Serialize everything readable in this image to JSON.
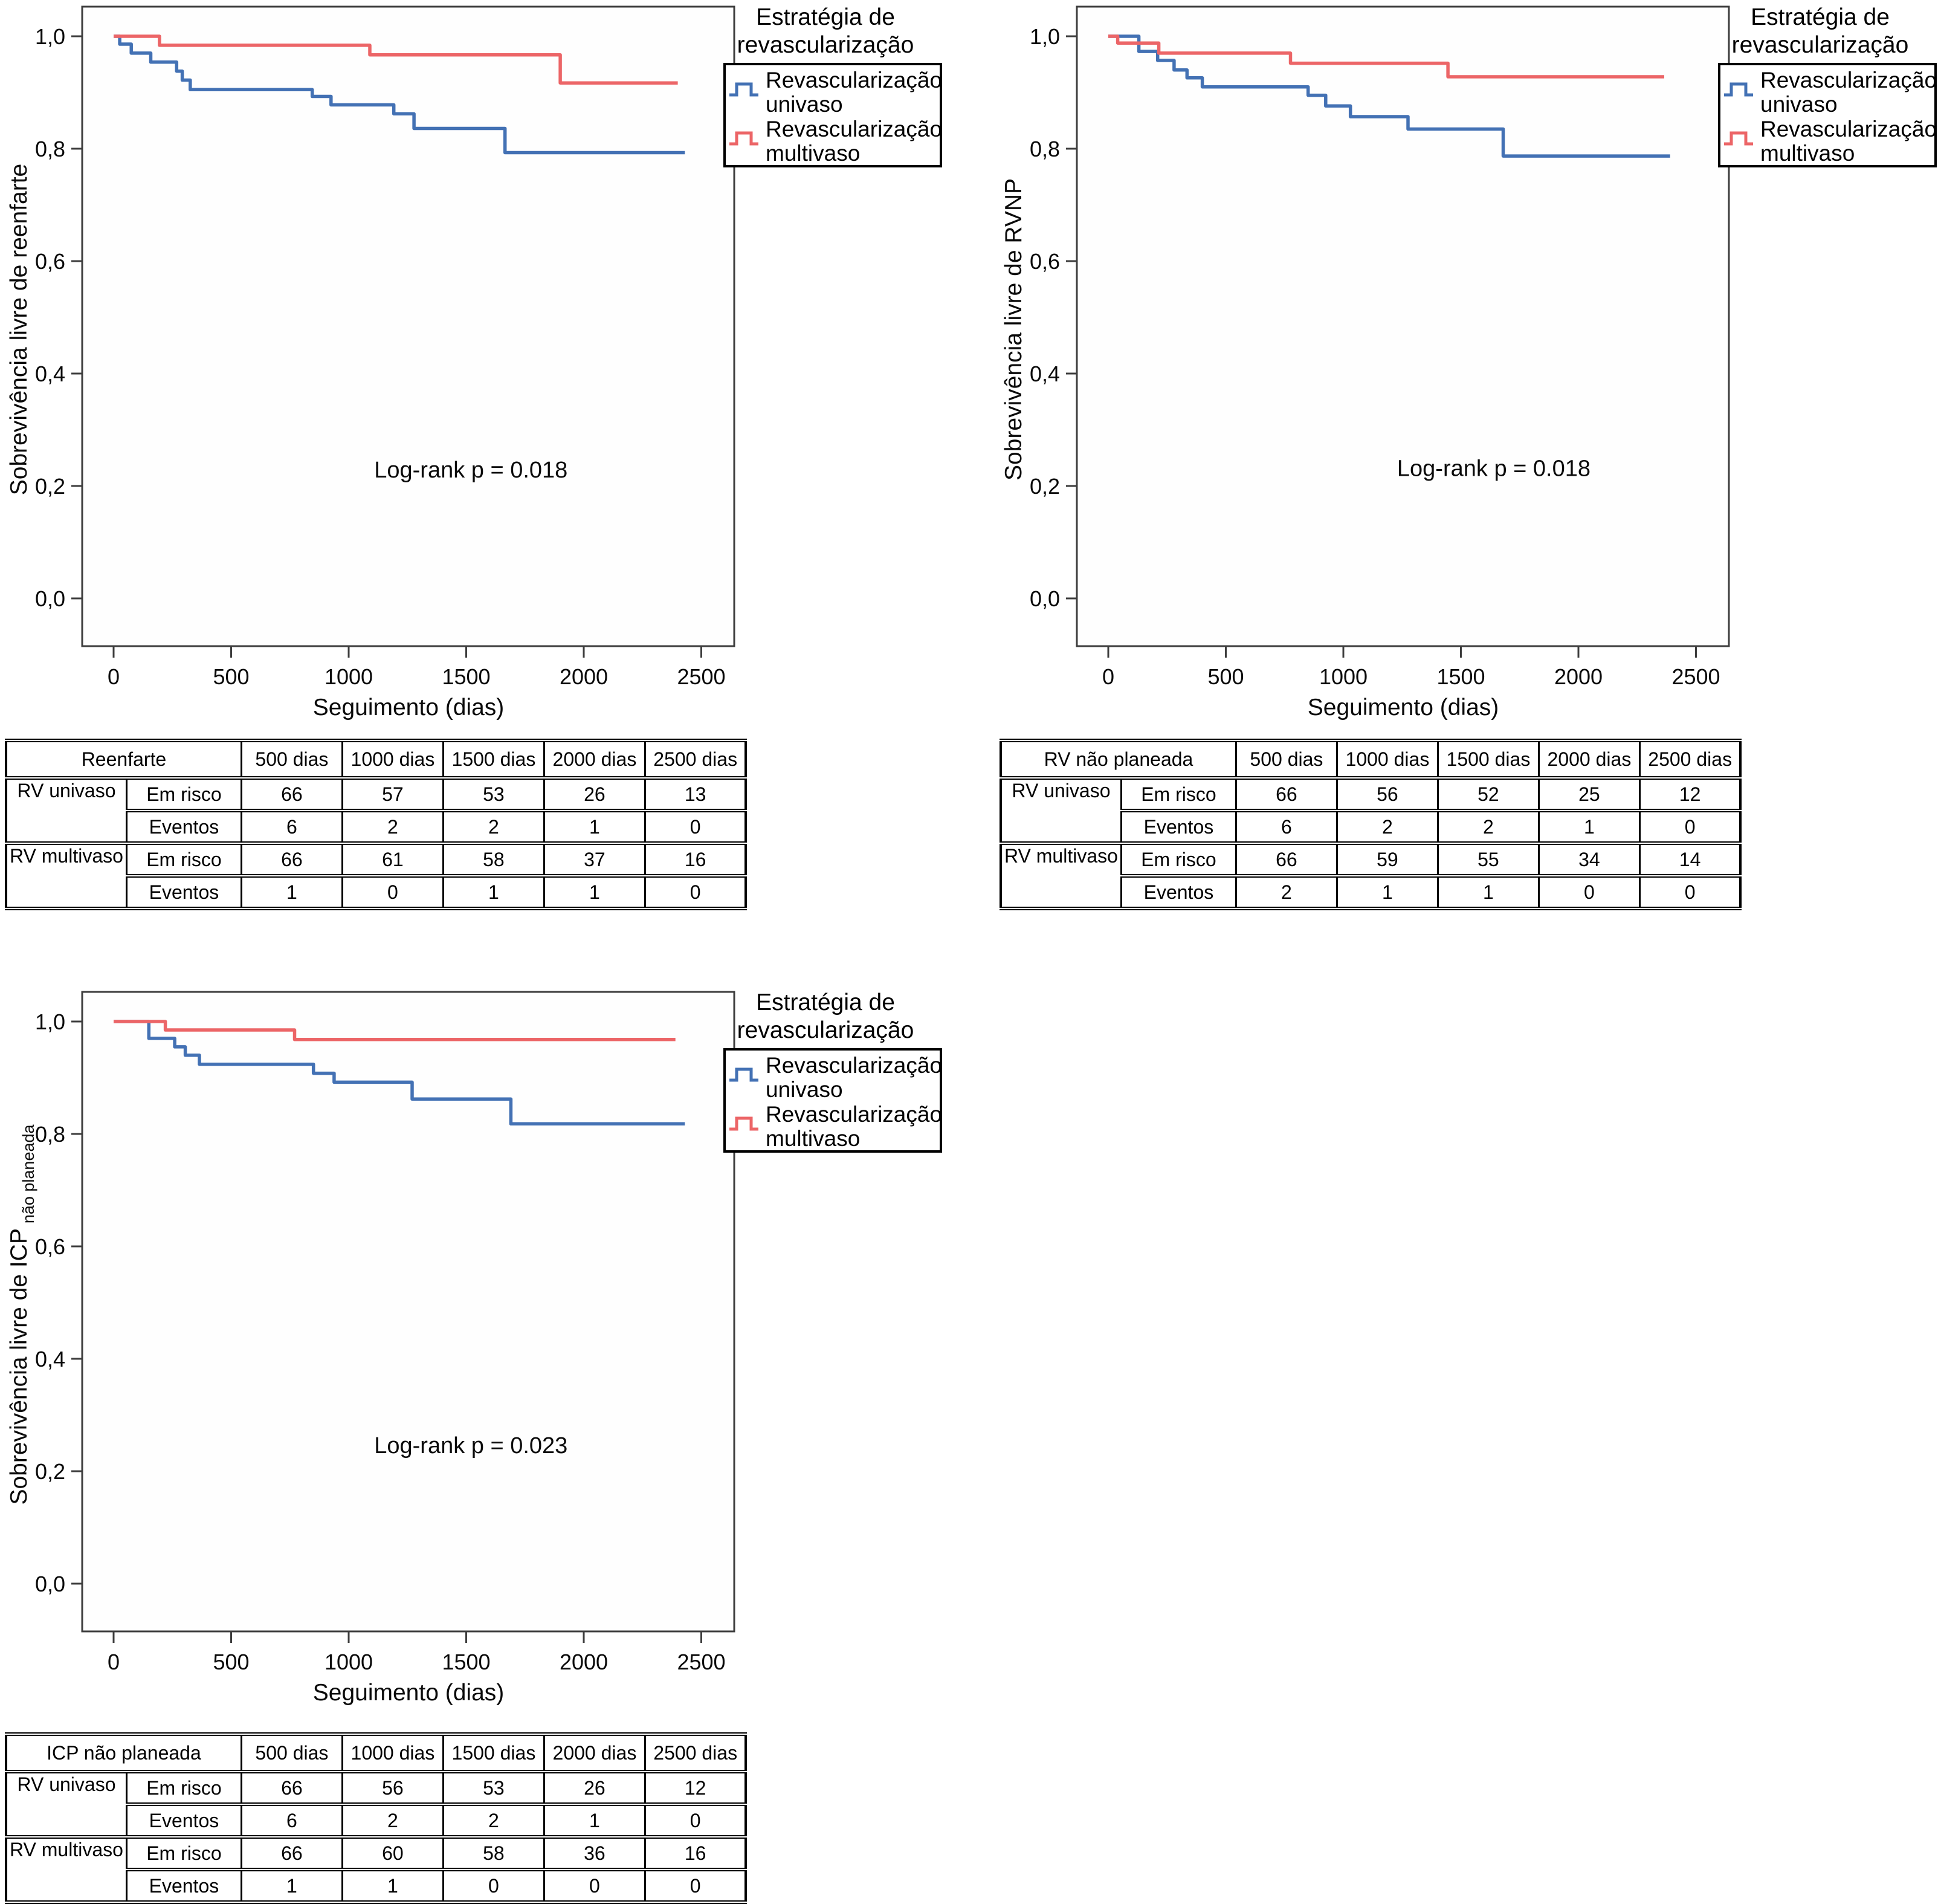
{
  "figure": {
    "description": "Kaplan-Meier survival curves comparing revascularization strategies",
    "colors": {
      "univaso": "#4371b4",
      "multivaso": "#ec6567",
      "axis": "#3d3d3d"
    }
  },
  "chart_data": [
    {
      "type": "line",
      "subtype": "kaplan-meier-step",
      "ylabel": "Sobrevivência livre de reenfarte",
      "ylabel_sub": "",
      "xlabel": "Seguimento (dias)",
      "annotation": "Log-rank p = 0.018",
      "annotation_pos": [
        1520,
        0.215
      ],
      "xlim": [
        0,
        2500
      ],
      "ylim": [
        0.0,
        1.0
      ],
      "x_ticks": [
        0,
        500,
        1000,
        1500,
        2000,
        2500
      ],
      "y_ticks": [
        "1,0",
        "0,8",
        "0,6",
        "0,4",
        "0,2",
        "0,0"
      ],
      "y_tick_values": [
        1.0,
        0.8,
        0.6,
        0.4,
        0.2,
        0.0
      ],
      "legend": {
        "title_lines": [
          "Estratégia de",
          "revascularização"
        ],
        "entries": [
          {
            "label_line1": "Revascularização",
            "label_line2": "univaso",
            "color": "#4371b4"
          },
          {
            "label_line1": "Revascularização",
            "label_line2": "multivaso",
            "color": "#ec6567"
          }
        ]
      },
      "series": [
        {
          "name": "Revascularização univaso",
          "color": "#4371b4",
          "points": [
            [
              0,
              1.0
            ],
            [
              26,
              0.986
            ],
            [
              75,
              0.97
            ],
            [
              158,
              0.954
            ],
            [
              268,
              0.938
            ],
            [
              292,
              0.922
            ],
            [
              326,
              0.905
            ],
            [
              845,
              0.893
            ],
            [
              925,
              0.878
            ],
            [
              1192,
              0.862
            ],
            [
              1278,
              0.836
            ],
            [
              1665,
              0.793
            ],
            [
              2430,
              0.793
            ]
          ]
        },
        {
          "name": "Revascularização multivaso",
          "color": "#ec6567",
          "points": [
            [
              0,
              1.0
            ],
            [
              195,
              0.984
            ],
            [
              1090,
              0.967
            ],
            [
              1900,
              0.917
            ],
            [
              2400,
              0.917
            ]
          ]
        }
      ],
      "table": {
        "corner": "Reenfarte",
        "col_headers": [
          "500 dias",
          "1000 dias",
          "1500 dias",
          "2000 dias",
          "2500 dias"
        ],
        "groups": [
          {
            "name": "RV univaso",
            "rows": [
              {
                "label": "Em risco",
                "values": [
                  "66",
                  "57",
                  "53",
                  "26",
                  "13"
                ]
              },
              {
                "label": "Eventos",
                "values": [
                  "6",
                  "2",
                  "2",
                  "1",
                  "0"
                ]
              }
            ]
          },
          {
            "name": "RV multivaso",
            "rows": [
              {
                "label": "Em risco",
                "values": [
                  "66",
                  "61",
                  "58",
                  "37",
                  "16"
                ]
              },
              {
                "label": "Eventos",
                "values": [
                  "1",
                  "0",
                  "1",
                  "1",
                  "0"
                ]
              }
            ]
          }
        ]
      }
    },
    {
      "type": "line",
      "subtype": "kaplan-meier-step",
      "ylabel": "Sobrevivência livre de RVNP",
      "ylabel_sub": "",
      "xlabel": "Seguimento (dias)",
      "annotation": "Log-rank p = 0.018",
      "annotation_pos": [
        1640,
        0.218
      ],
      "xlim": [
        0,
        2500
      ],
      "ylim": [
        0.0,
        1.0
      ],
      "x_ticks": [
        0,
        500,
        1000,
        1500,
        2000,
        2500
      ],
      "y_ticks": [
        "1,0",
        "0,8",
        "0,6",
        "0,4",
        "0,2",
        "0,0"
      ],
      "y_tick_values": [
        1.0,
        0.8,
        0.6,
        0.4,
        0.2,
        0.0
      ],
      "legend": {
        "title_lines": [
          "Estratégia de",
          "revascularização"
        ],
        "entries": [
          {
            "label_line1": "Revascularização",
            "label_line2": "univaso",
            "color": "#4371b4"
          },
          {
            "label_line1": "Revascularização",
            "label_line2": "multivaso",
            "color": "#ec6567"
          }
        ]
      },
      "series": [
        {
          "name": "Revascularização univaso",
          "color": "#4371b4",
          "points": [
            [
              0,
              1.0
            ],
            [
              130,
              0.973
            ],
            [
              210,
              0.957
            ],
            [
              280,
              0.94
            ],
            [
              335,
              0.926
            ],
            [
              400,
              0.91
            ],
            [
              850,
              0.895
            ],
            [
              925,
              0.876
            ],
            [
              1030,
              0.857
            ],
            [
              1275,
              0.835
            ],
            [
              1680,
              0.787
            ],
            [
              2390,
              0.787
            ]
          ]
        },
        {
          "name": "Revascularização multivaso",
          "color": "#ec6567",
          "points": [
            [
              0,
              1.0
            ],
            [
              40,
              0.988
            ],
            [
              215,
              0.97
            ],
            [
              775,
              0.952
            ],
            [
              1445,
              0.928
            ],
            [
              2365,
              0.928
            ]
          ]
        }
      ],
      "table": {
        "corner": "RV não planeada",
        "col_headers": [
          "500 dias",
          "1000 dias",
          "1500 dias",
          "2000 dias",
          "2500 dias"
        ],
        "groups": [
          {
            "name": "RV univaso",
            "rows": [
              {
                "label": "Em risco",
                "values": [
                  "66",
                  "56",
                  "52",
                  "25",
                  "12"
                ]
              },
              {
                "label": "Eventos",
                "values": [
                  "6",
                  "2",
                  "2",
                  "1",
                  "0"
                ]
              }
            ]
          },
          {
            "name": "RV multivaso",
            "rows": [
              {
                "label": "Em risco",
                "values": [
                  "66",
                  "59",
                  "55",
                  "34",
                  "14"
                ]
              },
              {
                "label": "Eventos",
                "values": [
                  "2",
                  "1",
                  "1",
                  "0",
                  "0"
                ]
              }
            ]
          }
        ]
      }
    },
    {
      "type": "line",
      "subtype": "kaplan-meier-step",
      "ylabel": "Sobrevivência livre de ICP",
      "ylabel_sub": "não planeada",
      "xlabel": "Seguimento (dias)",
      "annotation": "Log-rank p = 0.023",
      "annotation_pos": [
        1520,
        0.232
      ],
      "xlim": [
        0,
        2500
      ],
      "ylim": [
        0.0,
        1.0
      ],
      "x_ticks": [
        0,
        500,
        1000,
        1500,
        2000,
        2500
      ],
      "y_ticks": [
        "1,0",
        "0,8",
        "0,6",
        "0,4",
        "0,2",
        "0,0"
      ],
      "y_tick_values": [
        1.0,
        0.8,
        0.6,
        0.4,
        0.2,
        0.0
      ],
      "legend": {
        "title_lines": [
          "Estratégia de",
          "revascularização"
        ],
        "entries": [
          {
            "label_line1": "Revascularização",
            "label_line2": "univaso",
            "color": "#4371b4"
          },
          {
            "label_line1": "Revascularização",
            "label_line2": "multivaso",
            "color": "#ec6567"
          }
        ]
      },
      "series": [
        {
          "name": "Revascularização univaso",
          "color": "#4371b4",
          "points": [
            [
              0,
              1.0
            ],
            [
              150,
              0.97
            ],
            [
              260,
              0.955
            ],
            [
              305,
              0.94
            ],
            [
              365,
              0.924
            ],
            [
              850,
              0.908
            ],
            [
              938,
              0.892
            ],
            [
              1270,
              0.862
            ],
            [
              1690,
              0.818
            ],
            [
              2430,
              0.818
            ]
          ]
        },
        {
          "name": "Revascularização multivaso",
          "color": "#ec6567",
          "points": [
            [
              0,
              1.0
            ],
            [
              220,
              0.985
            ],
            [
              770,
              0.968
            ],
            [
              2390,
              0.968
            ]
          ]
        }
      ],
      "table": {
        "corner": "ICP não planeada",
        "col_headers": [
          "500 dias",
          "1000 dias",
          "1500 dias",
          "2000 dias",
          "2500 dias"
        ],
        "groups": [
          {
            "name": "RV univaso",
            "rows": [
              {
                "label": "Em risco",
                "values": [
                  "66",
                  "56",
                  "53",
                  "26",
                  "12"
                ]
              },
              {
                "label": "Eventos",
                "values": [
                  "6",
                  "2",
                  "2",
                  "1",
                  "0"
                ]
              }
            ]
          },
          {
            "name": "RV multivaso",
            "rows": [
              {
                "label": "Em risco",
                "values": [
                  "66",
                  "60",
                  "58",
                  "36",
                  "16"
                ]
              },
              {
                "label": "Eventos",
                "values": [
                  "1",
                  "1",
                  "0",
                  "0",
                  "0"
                ]
              }
            ]
          }
        ]
      }
    }
  ]
}
